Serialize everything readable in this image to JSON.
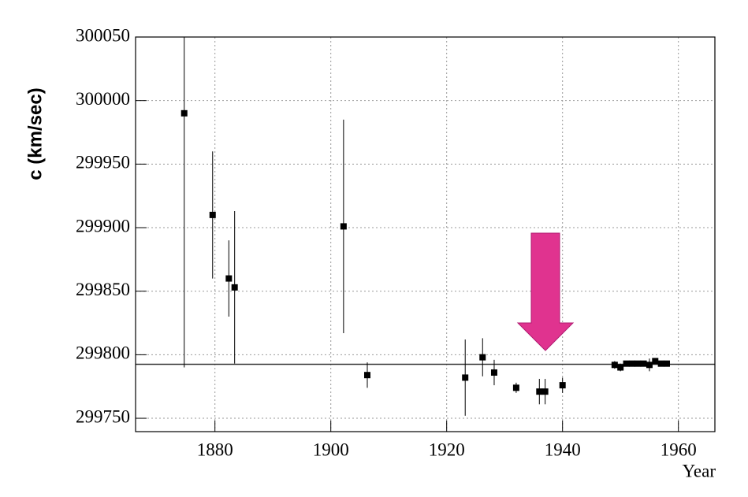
{
  "chart_data": {
    "type": "errorbar-scatter",
    "x_label": "Year",
    "y_label": "c (km/sec)",
    "x": [
      1874.7,
      1879.6,
      1882.4,
      1883.4,
      1902.2,
      1906.3,
      1923.2,
      1926.2,
      1928.2,
      1932,
      1936,
      1937,
      1940,
      1949,
      1950,
      1951,
      1952,
      1953,
      1954,
      1955,
      1956,
      1957,
      1958
    ],
    "values": [
      299990,
      299910,
      299860,
      299853,
      299901,
      299784,
      299782,
      299798,
      299786,
      299774,
      299771,
      299771,
      299776,
      299792,
      299790,
      299793,
      299793,
      299793,
      299793,
      299792,
      299795,
      299793,
      299793
    ],
    "errors": [
      200,
      50,
      30,
      60,
      84,
      10,
      30,
      15,
      10,
      4,
      10,
      10,
      6,
      3,
      3,
      2,
      1,
      1,
      1,
      5,
      2,
      1,
      1
    ],
    "color": "#000000",
    "reference_line": 299792.458,
    "xlim": [
      1866.3,
      1966.3
    ],
    "ylim": [
      299739.5,
      300050
    ],
    "xticks": [
      1880,
      1900,
      1920,
      1940,
      1960
    ],
    "yticks": [
      299750,
      299800,
      299850,
      299900,
      299950,
      300000,
      300050
    ],
    "grid": true
  }
}
